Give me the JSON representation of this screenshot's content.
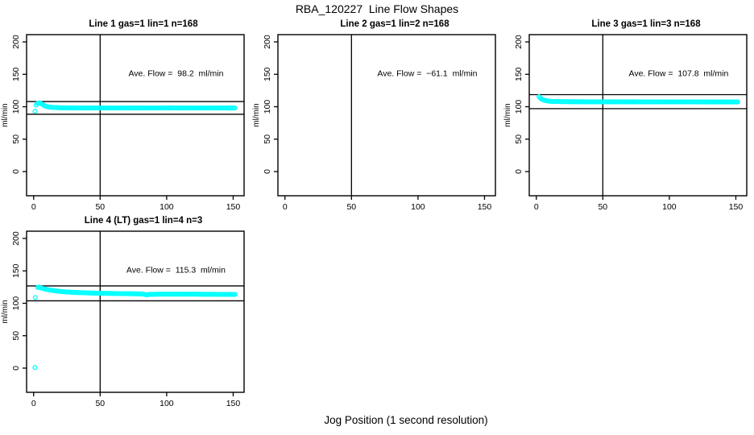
{
  "page": {
    "title": "RBA_120227  Line Flow Shapes",
    "xlabel": "Jog Position (1 second resolution)"
  },
  "colors": {
    "points": "#00FFFF",
    "axis": "#000000",
    "background": "#FFFFFF"
  },
  "chart_data": [
    {
      "type": "scatter",
      "title": "Line 1 gas=1 lin=1 n=168",
      "annotation": "Ave. Flow =  98.2  ml/min",
      "ave_flow_ml_min": 98.2,
      "n": 168,
      "ylabel": "ml/min",
      "xlim": [
        -5.3,
        158.2
      ],
      "ylim": [
        -37.3,
        211.2
      ],
      "xticks": [
        0,
        50,
        100,
        150
      ],
      "yticks": [
        0,
        50,
        100,
        150,
        200
      ],
      "vline_x": 50,
      "hlines": [
        108.0,
        88.4
      ],
      "keypoints": [
        [
          1,
          93
        ],
        [
          2,
          103.5
        ],
        [
          3,
          105.5
        ],
        [
          4,
          106
        ],
        [
          5,
          105.5
        ],
        [
          6,
          104.5
        ],
        [
          7,
          103
        ],
        [
          8,
          101.8
        ],
        [
          9,
          100.8
        ],
        [
          10,
          100.2
        ],
        [
          12,
          99.4
        ],
        [
          15,
          98.8
        ],
        [
          20,
          98.4
        ],
        [
          30,
          98.2
        ],
        [
          60,
          98.1
        ],
        [
          100,
          98.2
        ],
        [
          152,
          98.1
        ]
      ],
      "extra_points": []
    },
    {
      "type": "scatter",
      "title": "Line 2 gas=1 lin=2 n=168",
      "annotation": "Ave. Flow =  −61.1  ml/min",
      "ave_flow_ml_min": -61.1,
      "n": 168,
      "ylabel": "ml/min",
      "xlim": [
        -5.3,
        158.2
      ],
      "ylim": [
        -37.3,
        211.2
      ],
      "xticks": [
        0,
        50,
        100,
        150
      ],
      "yticks": [
        0,
        50,
        100,
        150,
        200
      ],
      "vline_x": 50,
      "hlines": [],
      "keypoints": [],
      "extra_points": []
    },
    {
      "type": "scatter",
      "title": "Line 3 gas=1 lin=3 n=168",
      "annotation": "Ave. Flow =  107.8  ml/min",
      "ave_flow_ml_min": 107.8,
      "n": 168,
      "ylabel": "ml/min",
      "xlim": [
        -5.3,
        158.2
      ],
      "ylim": [
        -37.3,
        211.2
      ],
      "xticks": [
        0,
        50,
        100,
        150
      ],
      "yticks": [
        0,
        50,
        100,
        150,
        200
      ],
      "vline_x": 50,
      "hlines": [
        118.6,
        97.0
      ],
      "keypoints": [
        [
          2,
          115.5
        ],
        [
          3,
          113.5
        ],
        [
          4,
          111.8
        ],
        [
          5,
          110.8
        ],
        [
          6,
          110
        ],
        [
          8,
          109
        ],
        [
          10,
          108.4
        ],
        [
          14,
          108
        ],
        [
          20,
          107.8
        ],
        [
          40,
          107.6
        ],
        [
          80,
          107.5
        ],
        [
          120,
          107.4
        ],
        [
          152,
          107.3
        ]
      ],
      "extra_points": []
    },
    {
      "type": "scatter",
      "title": "Line 4 (LT) gas=1 lin=4 n=3",
      "annotation": "Ave. Flow =  115.3  ml/min",
      "ave_flow_ml_min": 115.3,
      "n": 3,
      "ylabel": "ml/min",
      "xlim": [
        -5.3,
        158.2
      ],
      "ylim": [
        -37.3,
        211.2
      ],
      "xticks": [
        0,
        50,
        100,
        150
      ],
      "yticks": [
        0,
        50,
        100,
        150,
        200
      ],
      "vline_x": 50,
      "hlines": [
        126.8,
        103.8
      ],
      "keypoints": [
        [
          3,
          124.5
        ],
        [
          4,
          125
        ],
        [
          5,
          124.2
        ],
        [
          6,
          123.4
        ],
        [
          8,
          122.3
        ],
        [
          10,
          121.3
        ],
        [
          14,
          119.8
        ],
        [
          18,
          118.7
        ],
        [
          24,
          117.6
        ],
        [
          32,
          116.6
        ],
        [
          42,
          115.9
        ],
        [
          55,
          115.3
        ],
        [
          70,
          114.8
        ],
        [
          82,
          114.4
        ],
        [
          85,
          113
        ],
        [
          88,
          113.9
        ],
        [
          100,
          114.1
        ],
        [
          120,
          114
        ],
        [
          135,
          113.9
        ],
        [
          152,
          113.6
        ]
      ],
      "extra_points": [
        [
          1,
          1
        ],
        [
          1.3,
          109
        ]
      ]
    }
  ]
}
